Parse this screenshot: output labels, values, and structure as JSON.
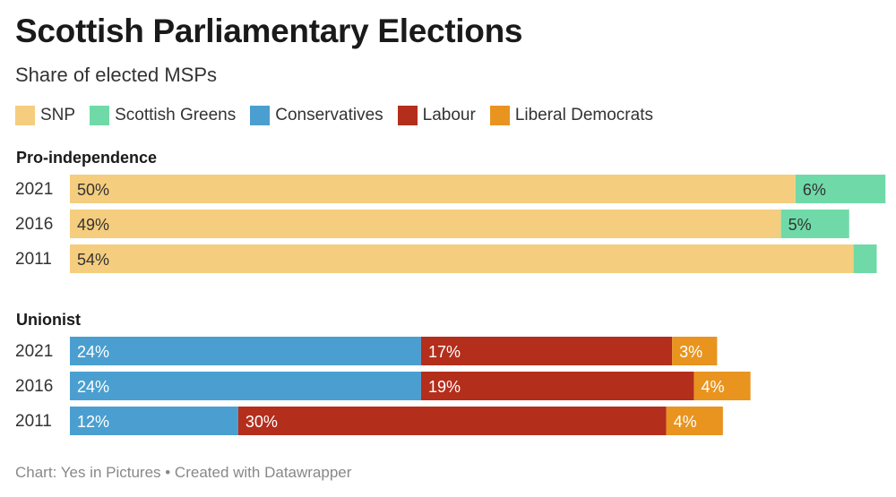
{
  "title": "Scottish Parliamentary Elections",
  "subtitle": "Share of elected MSPs",
  "footer": "Chart: Yes in Pictures • Created with Datawrapper",
  "legend": [
    {
      "name": "SNP",
      "color": "#f5cd7e"
    },
    {
      "name": "Scottish Greens",
      "color": "#6fdaa8"
    },
    {
      "name": "Conservatives",
      "color": "#4a9fd0"
    },
    {
      "name": "Labour",
      "color": "#b42e1c"
    },
    {
      "name": "Liberal Democrats",
      "color": "#e8941f"
    }
  ],
  "chart_data": {
    "type": "bar",
    "orientation": "horizontal",
    "stacked": true,
    "title": "Scottish Parliamentary Elections",
    "subtitle": "Share of elected MSPs",
    "value_unit": "%",
    "xlim": [
      0,
      56
    ],
    "groups": [
      {
        "label": "Pro-independence",
        "rows": [
          {
            "year": "2021",
            "segments": [
              {
                "party": "SNP",
                "value": 50,
                "label": "50%",
                "color": "#f5cd7e",
                "text_color": "#333333"
              },
              {
                "party": "Scottish Greens",
                "value": 6.2,
                "label": "6%",
                "color": "#6fdaa8",
                "text_color": "#333333"
              }
            ]
          },
          {
            "year": "2016",
            "segments": [
              {
                "party": "SNP",
                "value": 49,
                "label": "49%",
                "color": "#f5cd7e",
                "text_color": "#333333"
              },
              {
                "party": "Scottish Greens",
                "value": 4.7,
                "label": "5%",
                "color": "#6fdaa8",
                "text_color": "#333333"
              }
            ]
          },
          {
            "year": "2011",
            "segments": [
              {
                "party": "SNP",
                "value": 54,
                "label": "54%",
                "color": "#f5cd7e",
                "text_color": "#333333"
              },
              {
                "party": "Scottish Greens",
                "value": 1.6,
                "label": "",
                "color": "#6fdaa8",
                "text_color": "#333333"
              }
            ]
          }
        ]
      },
      {
        "label": "Unionist",
        "rows": [
          {
            "year": "2021",
            "segments": [
              {
                "party": "Conservatives",
                "value": 24.2,
                "label": "24%",
                "color": "#4a9fd0",
                "text_color": "#ffffff"
              },
              {
                "party": "Labour",
                "value": 17.3,
                "label": "17%",
                "color": "#b42e1c",
                "text_color": "#ffffff"
              },
              {
                "party": "Liberal Democrats",
                "value": 3.1,
                "label": "3%",
                "color": "#e8941f",
                "text_color": "#ffffff"
              }
            ]
          },
          {
            "year": "2016",
            "segments": [
              {
                "party": "Conservatives",
                "value": 24.2,
                "label": "24%",
                "color": "#4a9fd0",
                "text_color": "#ffffff"
              },
              {
                "party": "Labour",
                "value": 18.8,
                "label": "19%",
                "color": "#b42e1c",
                "text_color": "#ffffff"
              },
              {
                "party": "Liberal Democrats",
                "value": 3.9,
                "label": "4%",
                "color": "#e8941f",
                "text_color": "#ffffff"
              }
            ]
          },
          {
            "year": "2011",
            "segments": [
              {
                "party": "Conservatives",
                "value": 11.6,
                "label": "12%",
                "color": "#4a9fd0",
                "text_color": "#ffffff"
              },
              {
                "party": "Labour",
                "value": 29.5,
                "label": "30%",
                "color": "#b42e1c",
                "text_color": "#ffffff"
              },
              {
                "party": "Liberal Democrats",
                "value": 3.9,
                "label": "4%",
                "color": "#e8941f",
                "text_color": "#ffffff"
              }
            ]
          }
        ]
      }
    ]
  }
}
